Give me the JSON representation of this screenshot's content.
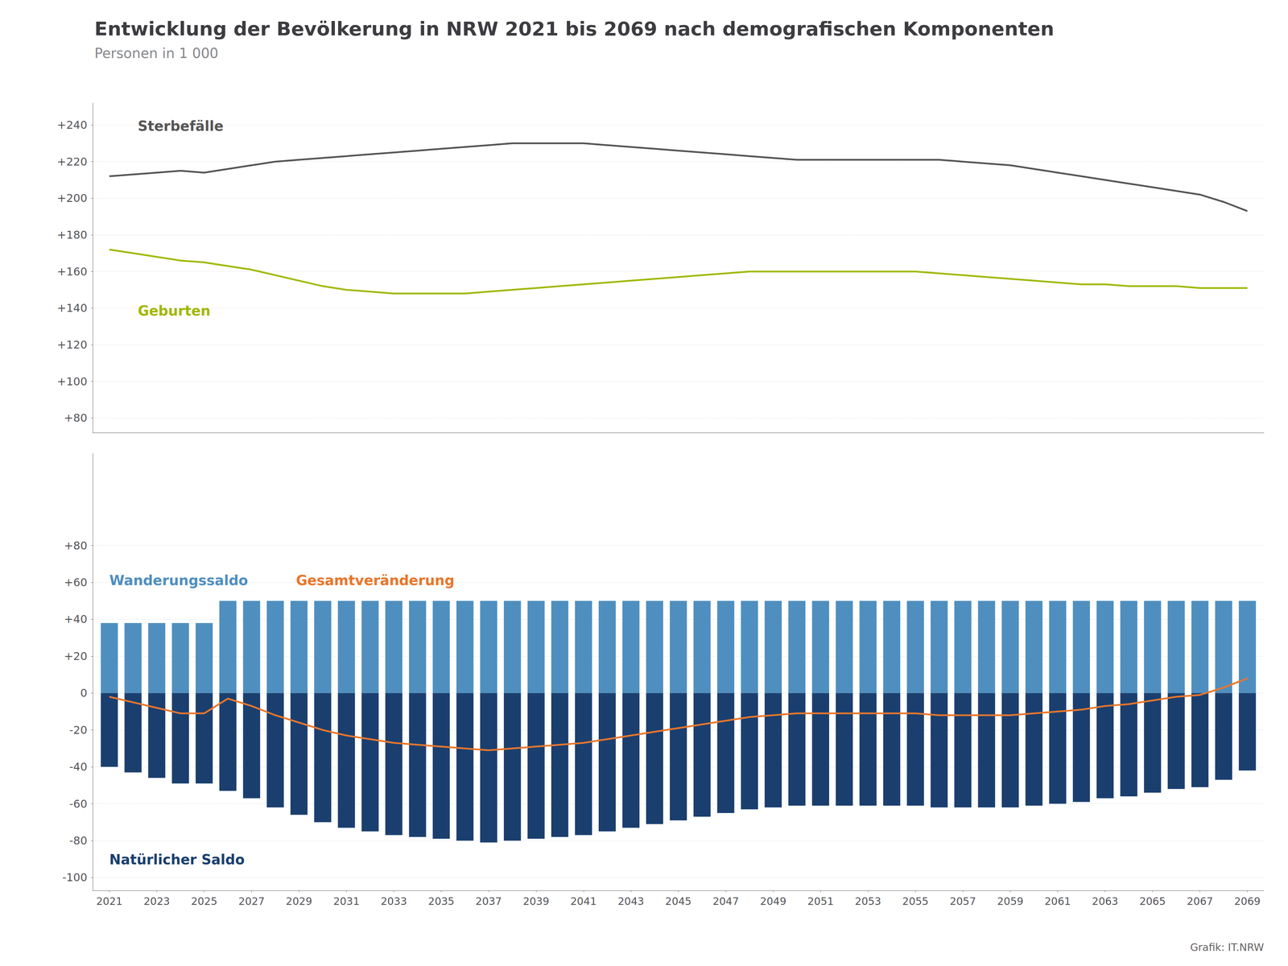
{
  "chart_data": [
    {
      "type": "line",
      "title": "Entwicklung der Bevölkerung in NRW 2021 bis 2069 nach demografischen Komponenten",
      "subtitle": "Personen in 1 000",
      "x": [
        2021,
        2022,
        2023,
        2024,
        2025,
        2026,
        2027,
        2028,
        2029,
        2030,
        2031,
        2032,
        2033,
        2034,
        2035,
        2036,
        2037,
        2038,
        2039,
        2040,
        2041,
        2042,
        2043,
        2044,
        2045,
        2046,
        2047,
        2048,
        2049,
        2050,
        2051,
        2052,
        2053,
        2054,
        2055,
        2056,
        2057,
        2058,
        2059,
        2060,
        2061,
        2062,
        2063,
        2064,
        2065,
        2066,
        2067,
        2068,
        2069
      ],
      "xlim": [
        2020.3,
        2069.7
      ],
      "ylim": [
        72,
        252
      ],
      "yticks": [
        {
          "value": 240,
          "label": "+240"
        },
        {
          "value": 220,
          "label": "+220"
        },
        {
          "value": 200,
          "label": "+200"
        },
        {
          "value": 180,
          "label": "+180"
        },
        {
          "value": 160,
          "label": "+160"
        },
        {
          "value": 140,
          "label": "+140"
        },
        {
          "value": 120,
          "label": "+120"
        },
        {
          "value": 100,
          "label": "+100"
        },
        {
          "value": 80,
          "label": "+80"
        }
      ],
      "grid": true,
      "tick_labels": "y",
      "series": [
        {
          "name": "Sterbefälle",
          "color": "#555555",
          "values": [
            212,
            213,
            214,
            215,
            214,
            216,
            218,
            220,
            221,
            222,
            223,
            224,
            225,
            226,
            227,
            228,
            229,
            230,
            230,
            230,
            230,
            229,
            228,
            227,
            226,
            225,
            224,
            223,
            222,
            221,
            221,
            221,
            221,
            221,
            221,
            221,
            220,
            219,
            218,
            216,
            214,
            212,
            210,
            208,
            206,
            204,
            202,
            198,
            193
          ]
        },
        {
          "name": "Geburten",
          "color": "#a0b800",
          "values": [
            172,
            170,
            168,
            166,
            165,
            163,
            161,
            158,
            155,
            152,
            150,
            149,
            148,
            148,
            148,
            148,
            149,
            150,
            151,
            152,
            153,
            154,
            155,
            156,
            157,
            158,
            159,
            160,
            160,
            160,
            160,
            160,
            160,
            160,
            160,
            159,
            158,
            157,
            156,
            155,
            154,
            153,
            153,
            152,
            152,
            152,
            151,
            151,
            151
          ]
        }
      ]
    },
    {
      "type": "bar",
      "x": [
        2021,
        2022,
        2023,
        2024,
        2025,
        2026,
        2027,
        2028,
        2029,
        2030,
        2031,
        2032,
        2033,
        2034,
        2035,
        2036,
        2037,
        2038,
        2039,
        2040,
        2041,
        2042,
        2043,
        2044,
        2045,
        2046,
        2047,
        2048,
        2049,
        2050,
        2051,
        2052,
        2053,
        2054,
        2055,
        2056,
        2057,
        2058,
        2059,
        2060,
        2061,
        2062,
        2063,
        2064,
        2065,
        2066,
        2067,
        2068,
        2069
      ],
      "xlim": [
        2020.3,
        2069.7
      ],
      "xticks": [
        2021,
        2023,
        2025,
        2027,
        2029,
        2031,
        2033,
        2035,
        2037,
        2039,
        2041,
        2043,
        2045,
        2047,
        2049,
        2051,
        2053,
        2055,
        2057,
        2059,
        2061,
        2063,
        2065,
        2067,
        2069
      ],
      "ylim": [
        -107,
        130
      ],
      "yticks": [
        {
          "value": 80,
          "label": "+80"
        },
        {
          "value": 60,
          "label": "+60"
        },
        {
          "value": 40,
          "label": "+40"
        },
        {
          "value": 20,
          "label": "+20"
        },
        0,
        -20,
        -40,
        -60,
        -80,
        -100
      ],
      "grid": true,
      "annotations": [
        "Grafik: IT.NRW"
      ],
      "series": [
        {
          "name": "Wanderungssaldo",
          "type": "bar",
          "color": "#4f8fbf",
          "values": [
            38,
            38,
            38,
            38,
            38,
            50,
            50,
            50,
            50,
            50,
            50,
            50,
            50,
            50,
            50,
            50,
            50,
            50,
            50,
            50,
            50,
            50,
            50,
            50,
            50,
            50,
            50,
            50,
            50,
            50,
            50,
            50,
            50,
            50,
            50,
            50,
            50,
            50,
            50,
            50,
            50,
            50,
            50,
            50,
            50,
            50,
            50,
            50,
            50
          ]
        },
        {
          "name": "Natürlicher Saldo",
          "type": "bar",
          "color": "#1a3f6f",
          "values": [
            -40,
            -43,
            -46,
            -49,
            -49,
            -53,
            -57,
            -62,
            -66,
            -70,
            -73,
            -75,
            -77,
            -78,
            -79,
            -80,
            -81,
            -80,
            -79,
            -78,
            -77,
            -75,
            -73,
            -71,
            -69,
            -67,
            -65,
            -63,
            -62,
            -61,
            -61,
            -61,
            -61,
            -61,
            -61,
            -62,
            -62,
            -62,
            -62,
            -61,
            -60,
            -59,
            -57,
            -56,
            -54,
            -52,
            -51,
            -47,
            -42
          ]
        },
        {
          "name": "Gesamtveränderung",
          "type": "line",
          "color": "#E8762B",
          "values": [
            -2,
            -5,
            -8,
            -11,
            -11,
            -3,
            -7,
            -12,
            -16,
            -20,
            -23,
            -25,
            -27,
            -28,
            -29,
            -30,
            -31,
            -30,
            -29,
            -28,
            -27,
            -25,
            -23,
            -21,
            -19,
            -17,
            -15,
            -13,
            -12,
            -11,
            -11,
            -11,
            -11,
            -11,
            -11,
            -12,
            -12,
            -12,
            -12,
            -11,
            -10,
            -9,
            -7,
            -6,
            -4,
            -2,
            -1,
            3,
            8
          ]
        }
      ]
    }
  ]
}
